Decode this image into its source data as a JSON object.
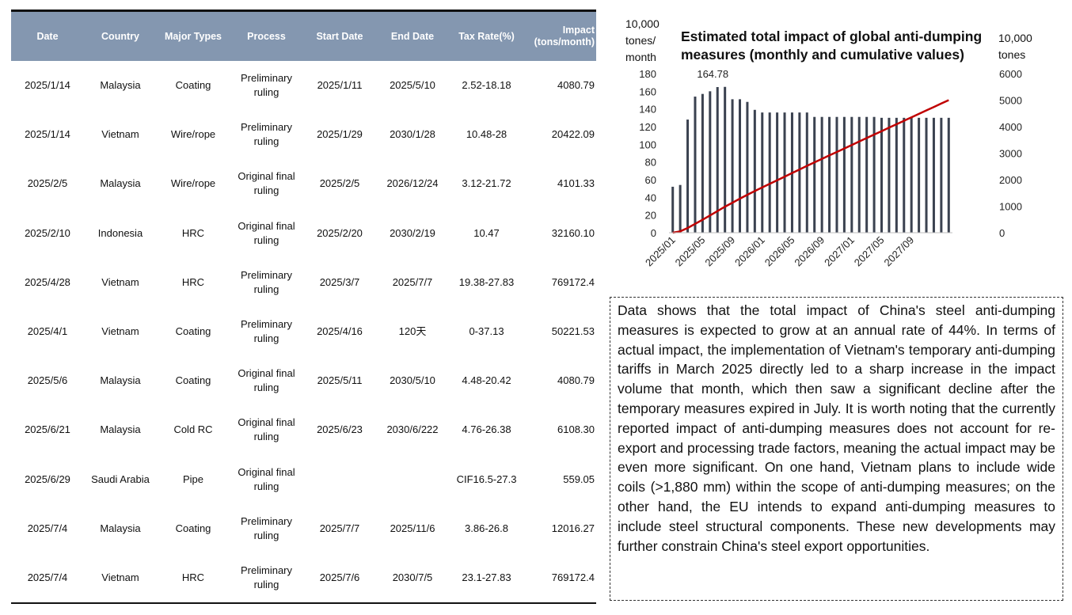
{
  "table": {
    "headers": [
      "Date",
      "Country",
      "Major Types",
      "Process",
      "Start Date",
      "End Date",
      "Tax Rate(%)",
      "Impact (tons/month)"
    ],
    "rows": [
      [
        "2025/1/14",
        "Malaysia",
        "Coating",
        "Preliminary ruling",
        "2025/1/11",
        "2025/5/10",
        "2.52-18.18",
        "4080.79"
      ],
      [
        "2025/1/14",
        "Vietnam",
        "Wire/rope",
        "Preliminary ruling",
        "2025/1/29",
        "2030/1/28",
        "10.48-28",
        "20422.09"
      ],
      [
        "2025/2/5",
        "Malaysia",
        "Wire/rope",
        "Original final ruling",
        "2025/2/5",
        "2026/12/24",
        "3.12-21.72",
        "4101.33"
      ],
      [
        "2025/2/10",
        "Indonesia",
        "HRC",
        "Original final ruling",
        "2025/2/20",
        "2030/2/19",
        "10.47",
        "32160.10"
      ],
      [
        "2025/4/28",
        "Vietnam",
        "HRC",
        "Preliminary ruling",
        "2025/3/7",
        "2025/7/7",
        "19.38-27.83",
        "769172.4"
      ],
      [
        "2025/4/1",
        "Vietnam",
        "Coating",
        "Preliminary ruling",
        "2025/4/16",
        "120天",
        "0-37.13",
        "50221.53"
      ],
      [
        "2025/5/6",
        "Malaysia",
        "Coating",
        "Original final ruling",
        "2025/5/11",
        "2030/5/10",
        "4.48-20.42",
        "4080.79"
      ],
      [
        "2025/6/21",
        "Malaysia",
        "Cold RC",
        "Original final ruling",
        "2025/6/23",
        "2030/6/222",
        "4.76-26.38",
        "6108.30"
      ],
      [
        "2025/6/29",
        "Saudi Arabia",
        "Pipe",
        "Original final ruling",
        "",
        "",
        "CIF16.5-27.3",
        "559.05"
      ],
      [
        "2025/7/4",
        "Malaysia",
        "Coating",
        "Preliminary ruling",
        "2025/7/7",
        "2025/11/6",
        "3.86-26.8",
        "12016.27"
      ],
      [
        "2025/7/4",
        "Vietnam",
        "HRC",
        "Preliminary ruling",
        "2025/7/6",
        "2030/7/5",
        "23.1-27.83",
        "769172.4"
      ]
    ]
  },
  "chart_data": {
    "type": "bar",
    "title": "Estimated total impact of global anti-dumping measures (monthly and cumulative values)",
    "left_axis_label": [
      "10,000",
      "tones/",
      "month"
    ],
    "right_axis_label": [
      "10,000",
      "tones"
    ],
    "ylim_left": [
      0,
      180
    ],
    "ylim_right": [
      0,
      6000
    ],
    "left_ticks": [
      "0",
      "20",
      "40",
      "60",
      "80",
      "100",
      "120",
      "140",
      "160",
      "180"
    ],
    "right_ticks": [
      "0",
      "1000",
      "2000",
      "3000",
      "4000",
      "5000",
      "6000"
    ],
    "x_tick_labels": [
      "2025/01",
      "2025/05",
      "2025/09",
      "2026/01",
      "2026/05",
      "2026/09",
      "2027/01",
      "2027/05",
      "2027/09"
    ],
    "peak_label": "164.78",
    "series": [
      {
        "type": "bar",
        "axis": "left",
        "values": [
          52,
          54,
          128,
          154,
          157,
          160,
          164.78,
          165,
          151,
          151,
          148,
          139,
          136,
          136,
          136,
          136,
          136,
          136,
          136,
          131,
          131,
          131,
          131,
          131,
          131,
          131,
          131,
          131,
          130,
          130,
          130,
          130,
          130,
          130,
          130,
          130,
          130,
          130
        ]
      },
      {
        "type": "line",
        "axis": "right",
        "color": "#c00000",
        "values": [
          0,
          52,
          180,
          334,
          491,
          651,
          816,
          981,
          1132,
          1283,
          1431,
          1570,
          1706,
          1842,
          1978,
          2114,
          2250,
          2386,
          2522,
          2653,
          2784,
          2915,
          3046,
          3177,
          3308,
          3439,
          3570,
          3701,
          3831,
          3961,
          4091,
          4221,
          4351,
          4481,
          4611,
          4741,
          4871,
          5001
        ]
      }
    ]
  },
  "note": {
    "text": "Data shows that the total impact of China's steel anti-dumping measures is expected to grow at an annual rate of 44%. In terms of actual impact, the implementation of Vietnam's temporary anti-dumping tariffs in March 2025 directly led to a sharp increase in the impact volume that month, which then saw a significant decline after the temporary measures expired in July. It is worth noting that the currently reported impact of anti-dumping measures does not account for re-export and processing trade factors, meaning the actual impact may be even more significant. On one hand, Vietnam plans to include wide coils (>1,880 mm) within the scope of anti-dumping measures; on the other hand, the EU intends to expand anti-dumping measures to include steel structural components. These new developments may further constrain China's steel export opportunities."
  }
}
